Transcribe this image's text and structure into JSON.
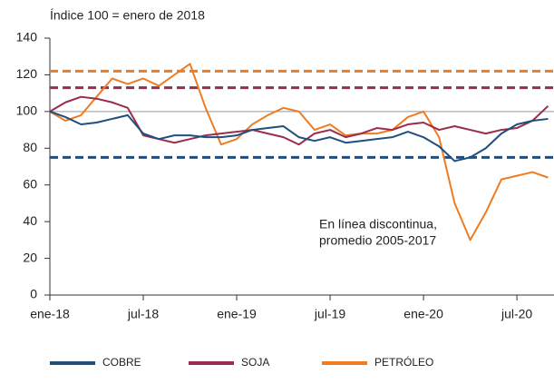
{
  "chart_data": {
    "type": "line",
    "subtitle": "Índice 100 = enero de 2018",
    "categories": [
      "ene-18",
      null,
      null,
      null,
      null,
      null,
      "jul-18",
      null,
      null,
      null,
      null,
      null,
      "ene-19",
      null,
      null,
      null,
      null,
      null,
      "jul-19",
      null,
      null,
      null,
      null,
      null,
      "ene-20",
      null,
      null,
      null,
      null,
      null,
      "jul-20",
      null,
      null
    ],
    "ylim": [
      0,
      140
    ],
    "yticks": [
      0,
      20,
      40,
      60,
      80,
      100,
      120,
      140
    ],
    "reference_line": 100,
    "annotation": [
      "En línea discontinua,",
      "promedio 2005-2017"
    ],
    "legend": "bottom",
    "series": [
      {
        "name": "COBRE",
        "color": "#1f4f7f",
        "average": 75,
        "values": [
          100,
          97,
          93,
          94,
          96,
          98,
          88,
          85,
          87,
          87,
          86,
          86,
          87,
          90,
          91,
          92,
          86,
          84,
          86,
          83,
          84,
          85,
          86,
          89,
          86,
          81,
          73,
          75,
          80,
          88,
          93,
          95,
          96
        ]
      },
      {
        "name": "SOJA",
        "color": "#9c2c4a",
        "average": 113,
        "values": [
          100,
          105,
          108,
          107,
          105,
          102,
          87,
          85,
          83,
          85,
          87,
          88,
          89,
          90,
          88,
          86,
          82,
          88,
          90,
          86,
          88,
          91,
          90,
          93,
          94,
          90,
          92,
          90,
          88,
          90,
          91,
          95,
          103
        ]
      },
      {
        "name": "PETRÓLEO",
        "color": "#f07c22",
        "average": 122,
        "values": [
          100,
          95,
          98,
          108,
          118,
          115,
          118,
          114,
          120,
          126,
          102,
          82,
          85,
          93,
          98,
          102,
          100,
          90,
          93,
          87,
          88,
          88,
          90,
          97,
          100,
          86,
          50,
          30,
          45,
          63,
          65,
          67,
          64
        ]
      }
    ]
  }
}
